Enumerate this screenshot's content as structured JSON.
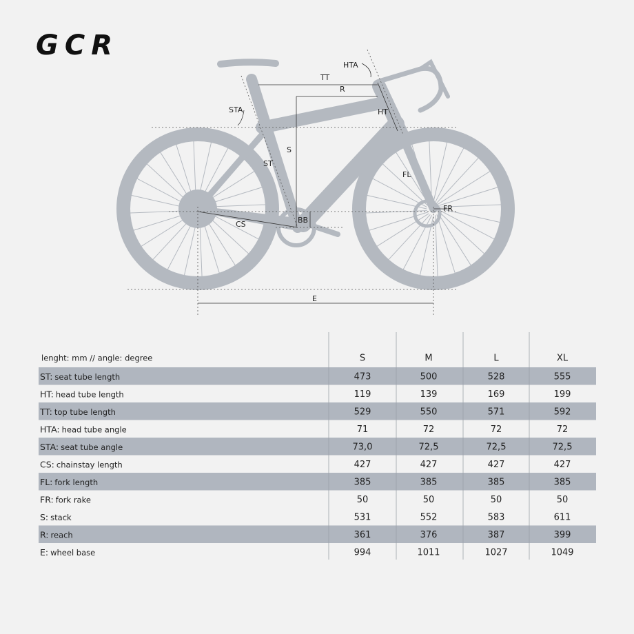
{
  "header": {
    "title": "GCR"
  },
  "diagram": {
    "labels": {
      "hta": "HTA",
      "tt": "TT",
      "r": "R",
      "sta": "STA",
      "ht": "HT",
      "s": "S",
      "st": "ST",
      "fl": "FL",
      "fr": "FR",
      "cs": "CS",
      "bb": "BB",
      "e": "E"
    }
  },
  "table": {
    "unit_note": "lenght: mm // angle: degree",
    "columns": [
      "S",
      "M",
      "L",
      "XL"
    ],
    "rows": [
      {
        "code": "ST:",
        "label": "seat tube length",
        "values": [
          "473",
          "500",
          "528",
          "555"
        ]
      },
      {
        "code": "HT:",
        "label": "head tube length",
        "values": [
          "119",
          "139",
          "169",
          "199"
        ]
      },
      {
        "code": "TT:",
        "label": "top tube length",
        "values": [
          "529",
          "550",
          "571",
          "592"
        ]
      },
      {
        "code": "HTA:",
        "label": "head tube angle",
        "values": [
          "71",
          "72",
          "72",
          "72"
        ]
      },
      {
        "code": "STA:",
        "label": "seat tube angle",
        "values": [
          "73,0",
          "72,5",
          "72,5",
          "72,5"
        ]
      },
      {
        "code": "CS:",
        "label": "chainstay length",
        "values": [
          "427",
          "427",
          "427",
          "427"
        ]
      },
      {
        "code": "FL:",
        "label": "fork length",
        "values": [
          "385",
          "385",
          "385",
          "385"
        ]
      },
      {
        "code": "FR:",
        "label": "fork rake",
        "values": [
          "50",
          "50",
          "50",
          "50"
        ]
      },
      {
        "code": "S:",
        "label": "stack",
        "values": [
          "531",
          "552",
          "583",
          "611"
        ]
      },
      {
        "code": "R:",
        "label": "reach",
        "values": [
          "361",
          "376",
          "387",
          "399"
        ]
      },
      {
        "code": "E:",
        "label": "wheel base",
        "values": [
          "994",
          "1011",
          "1027",
          "1049"
        ]
      }
    ]
  }
}
